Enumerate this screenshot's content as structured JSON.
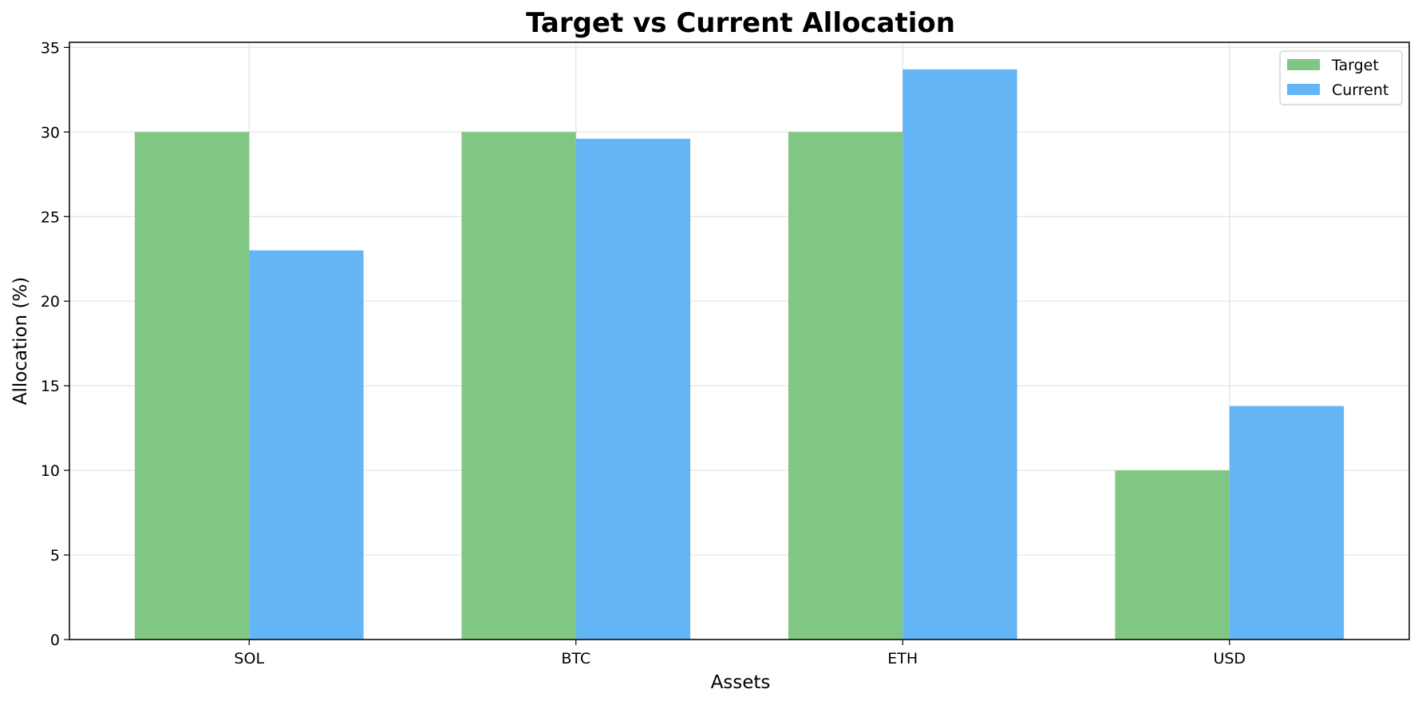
{
  "chart_data": {
    "type": "bar",
    "title": "Target vs Current Allocation",
    "xlabel": "Assets",
    "ylabel": "Allocation (%)",
    "categories": [
      "SOL",
      "BTC",
      "ETH",
      "USD"
    ],
    "series": [
      {
        "name": "Target",
        "values": [
          30,
          30,
          30,
          10
        ],
        "color": "#81c784"
      },
      {
        "name": "Current",
        "values": [
          23.0,
          29.6,
          33.7,
          13.8
        ],
        "color": "#64b5f6"
      }
    ],
    "ylim": [
      0,
      35.3
    ],
    "yticks": [
      0,
      5,
      10,
      15,
      20,
      25,
      30,
      35
    ],
    "grid": true,
    "legend_position": "top-right"
  }
}
